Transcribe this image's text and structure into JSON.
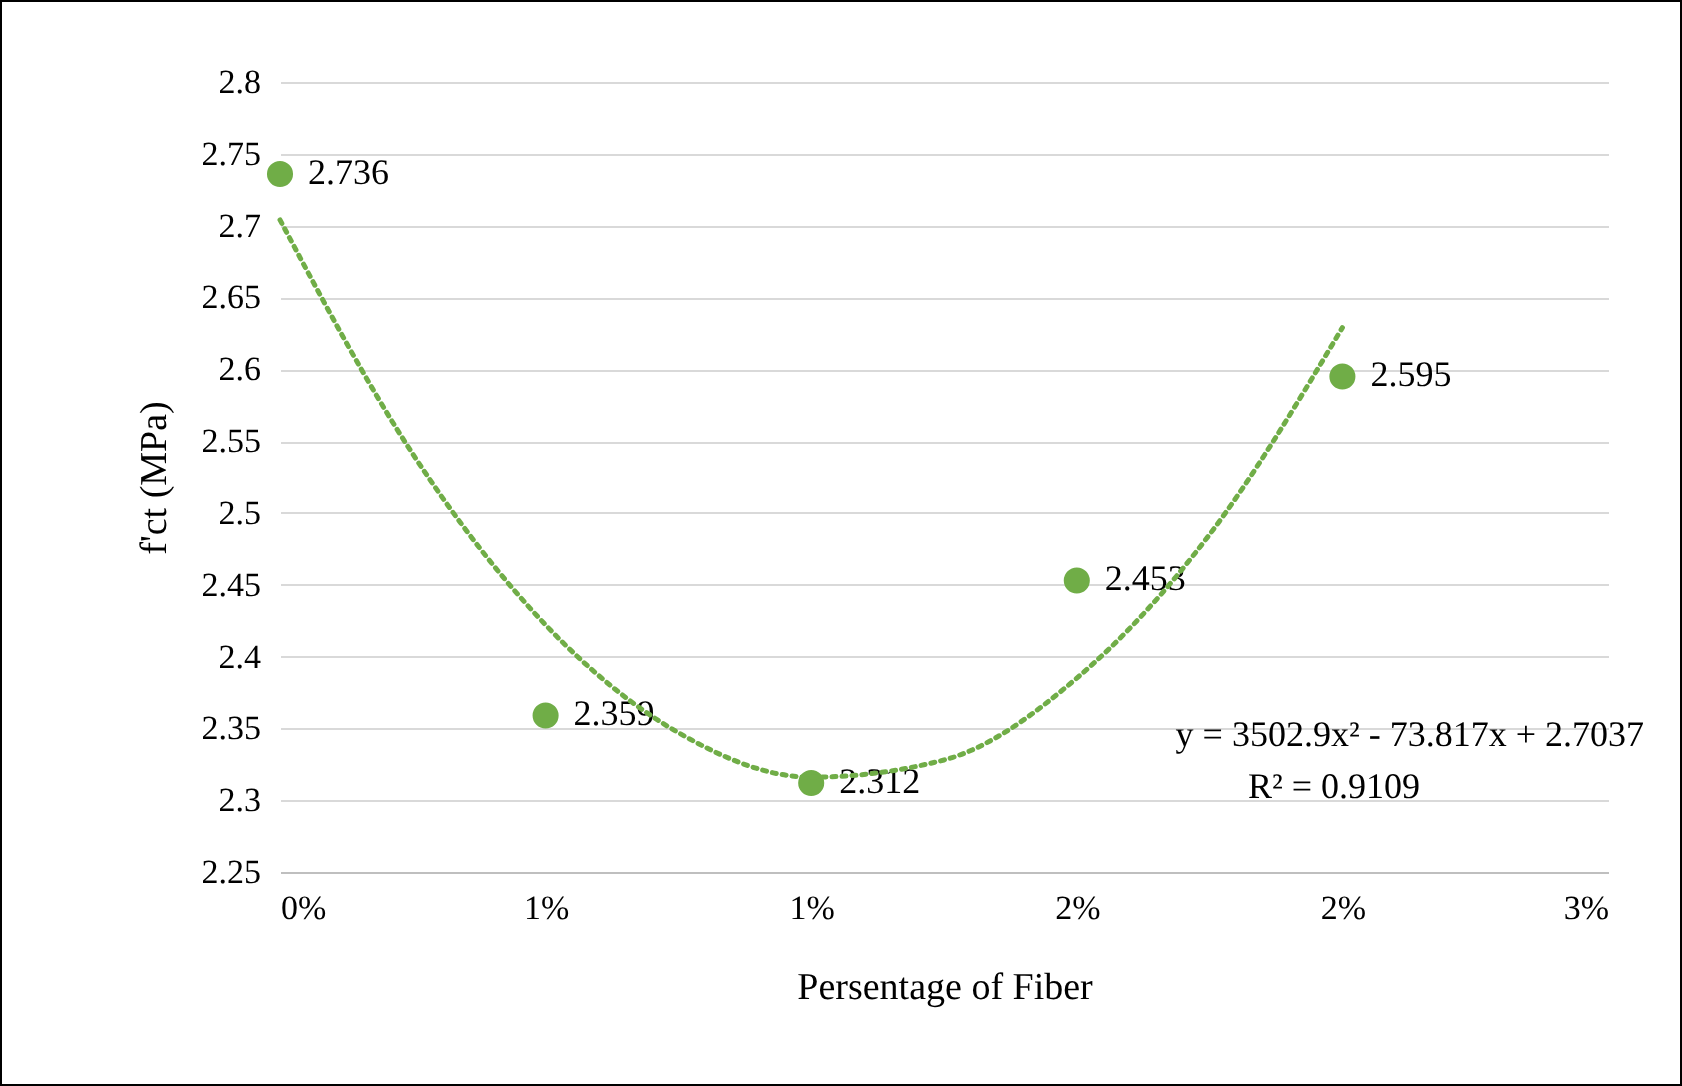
{
  "chart_data": {
    "type": "scatter",
    "xlabel": "Persentage of Fiber",
    "ylabel": "f'ct (MPa)",
    "x": [
      0,
      0.005,
      0.01,
      0.015,
      0.02
    ],
    "series": [
      {
        "color": "#70ad47",
        "marker": "circle",
        "values": [
          2.736,
          2.359,
          2.312,
          2.453,
          2.595
        ],
        "value_labels": [
          "2.736",
          "2.359",
          "2.312",
          "2.453",
          "2.595"
        ]
      },
      {
        "type": "line",
        "color": "#70ad47",
        "line_style": "dotted",
        "marker": "none",
        "x": [
          0,
          0.0025,
          0.005,
          0.0075,
          0.01,
          0.0125,
          0.015,
          0.0175,
          0.02
        ],
        "values": [
          2.704,
          2.541,
          2.422,
          2.347,
          2.316,
          2.328,
          2.385,
          2.485,
          2.629
        ]
      }
    ],
    "annotations": [
      "y = 3502.9x² - 73.817x + 2.7037",
      "R² = 0.9109"
    ],
    "xlim": [
      0,
      0.025
    ],
    "xticks": [
      {
        "value": 0,
        "label": "0%"
      },
      {
        "value": 0.005,
        "label": "1%"
      },
      {
        "value": 0.01,
        "label": "1%"
      },
      {
        "value": 0.015,
        "label": "2%"
      },
      {
        "value": 0.02,
        "label": "2%"
      },
      {
        "value": 0.025,
        "label": "3%"
      }
    ],
    "ylim": [
      2.25,
      2.8
    ],
    "yticks": [
      2.25,
      2.3,
      2.35,
      2.4,
      2.45,
      2.5,
      2.55,
      2.6,
      2.65,
      2.7,
      2.75,
      2.8
    ],
    "grid": "y"
  }
}
